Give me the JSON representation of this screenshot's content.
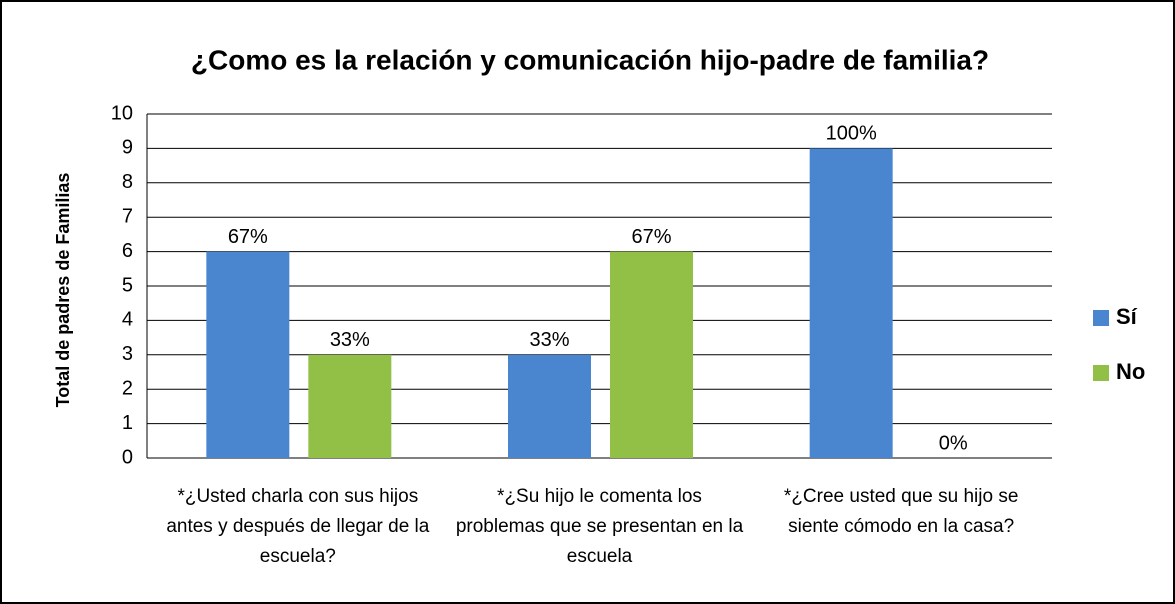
{
  "chart_data": {
    "type": "bar",
    "title": "¿Como es la relación y comunicación hijo-padre de familia?",
    "ylabel": "Total de  padres  de Familias",
    "categories": [
      "*¿Usted charla con sus hijos antes y después de llegar de la escuela?",
      "*¿Su hijo le comenta los problemas que se presentan en la escuela",
      "*¿Cree usted que su hijo se siente cómodo en la casa?"
    ],
    "series": [
      {
        "name": "Sí",
        "color": "#4a86d0",
        "values": [
          6,
          3,
          9
        ],
        "value_labels": [
          "67%",
          "33%",
          "100%"
        ]
      },
      {
        "name": "No",
        "color": "#92c047",
        "values": [
          3,
          6,
          0
        ],
        "value_labels": [
          "33%",
          "67%",
          "0%"
        ]
      }
    ],
    "ylim": [
      0,
      10
    ],
    "yticks": [
      0,
      1,
      2,
      3,
      4,
      5,
      6,
      7,
      8,
      9,
      10
    ],
    "grid": true,
    "legend": "right"
  }
}
